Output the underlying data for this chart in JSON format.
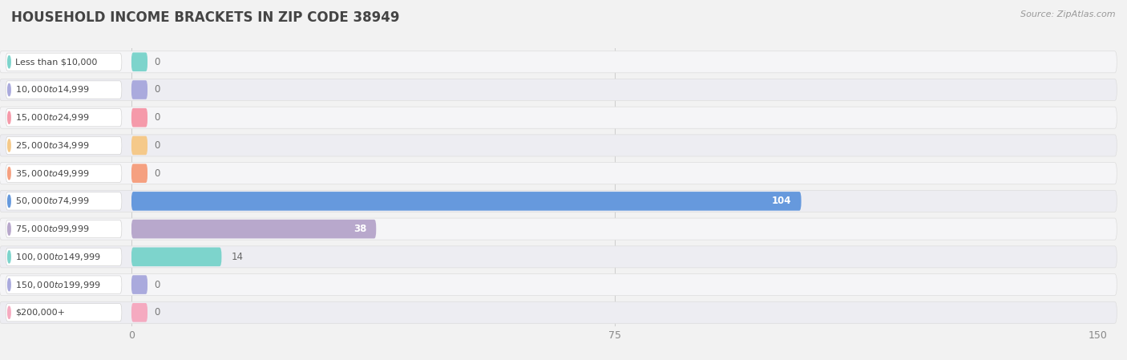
{
  "title": "HOUSEHOLD INCOME BRACKETS IN ZIP CODE 38949",
  "source": "Source: ZipAtlas.com",
  "categories": [
    "Less than $10,000",
    "$10,000 to $14,999",
    "$15,000 to $24,999",
    "$25,000 to $34,999",
    "$35,000 to $49,999",
    "$50,000 to $74,999",
    "$75,000 to $99,999",
    "$100,000 to $149,999",
    "$150,000 to $199,999",
    "$200,000+"
  ],
  "values": [
    0,
    0,
    0,
    0,
    0,
    104,
    38,
    14,
    0,
    0
  ],
  "bar_colors": [
    "#7dd4cc",
    "#aaaadd",
    "#f59aaa",
    "#f5c98a",
    "#f5a080",
    "#6699dd",
    "#b8a8cc",
    "#7dd4cc",
    "#aaaadd",
    "#f5aac0"
  ],
  "row_bg_color": "#f0f0f0",
  "row_alt_bg_color": "#e8e8ee",
  "pill_bg_color": "#f8f8f8",
  "label_box_bg": "#ffffff",
  "xlim_max": 150,
  "xticks": [
    0,
    75,
    150
  ],
  "title_fontsize": 12,
  "source_fontsize": 8,
  "tick_fontsize": 9,
  "label_fontsize": 8,
  "value_fontsize": 8.5
}
